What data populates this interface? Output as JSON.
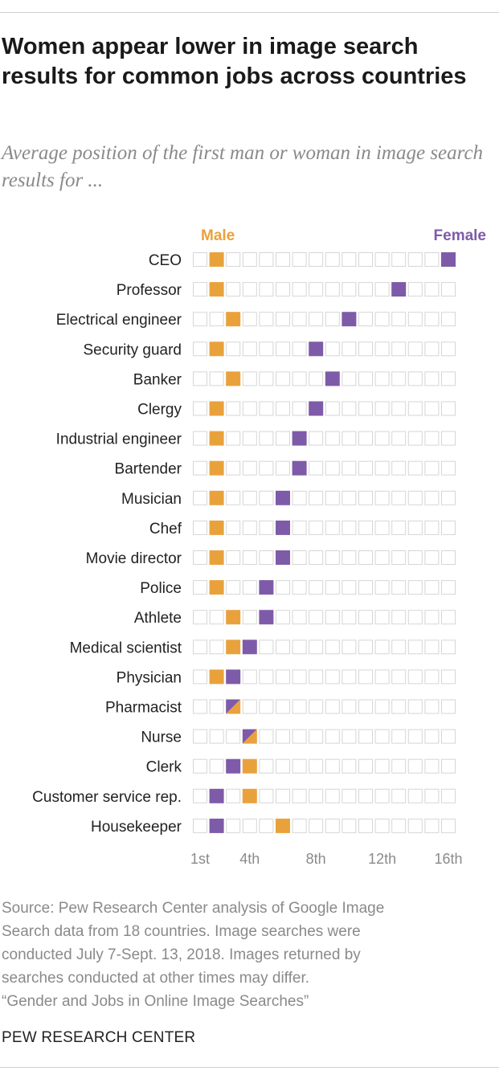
{
  "title": "Women appear lower in image search results for common jobs across countries",
  "subtitle": "Average position of the first man or woman in image search results for ...",
  "legend": {
    "male": "Male",
    "female": "Female"
  },
  "colors": {
    "male": "#e9a23b",
    "female": "#7e5ba8",
    "empty_border": "#d6d6d6"
  },
  "chart_data": {
    "type": "dot-grid",
    "title": "",
    "xlabel": "",
    "ylabel": "",
    "positions": 16,
    "xlim": [
      1,
      16
    ],
    "ticks": [
      {
        "value": 1,
        "label": "1st"
      },
      {
        "value": 4,
        "label": "4th"
      },
      {
        "value": 8,
        "label": "8th"
      },
      {
        "value": 12,
        "label": "12th"
      },
      {
        "value": 16,
        "label": "16th"
      }
    ],
    "series": [
      {
        "name": "Male",
        "color": "#e9a23b"
      },
      {
        "name": "Female",
        "color": "#7e5ba8"
      }
    ],
    "categories": [
      "CEO",
      "Professor",
      "Electrical engineer",
      "Security guard",
      "Banker",
      "Clergy",
      "Industrial engineer",
      "Bartender",
      "Musician",
      "Chef",
      "Movie director",
      "Police",
      "Athlete",
      "Medical scientist",
      "Physician",
      "Pharmacist",
      "Nurse",
      "Clerk",
      "Customer service rep.",
      "Housekeeper"
    ],
    "male": [
      2,
      2,
      3,
      2,
      3,
      2,
      2,
      2,
      2,
      2,
      2,
      2,
      3,
      3,
      2,
      3,
      4,
      4,
      4,
      6
    ],
    "female": [
      16,
      13,
      10,
      8,
      9,
      8,
      7,
      7,
      6,
      6,
      6,
      5,
      5,
      4,
      3,
      3,
      4,
      3,
      2,
      2
    ]
  },
  "source": [
    "Source: Pew Research Center analysis of Google Image",
    "Search data from 18 countries. Image searches were",
    "conducted July 7-Sept. 13, 2018. Images returned by",
    "searches conducted at other times may differ.",
    "“Gender and Jobs in Online Image Searches”"
  ],
  "footer": "PEW RESEARCH CENTER"
}
